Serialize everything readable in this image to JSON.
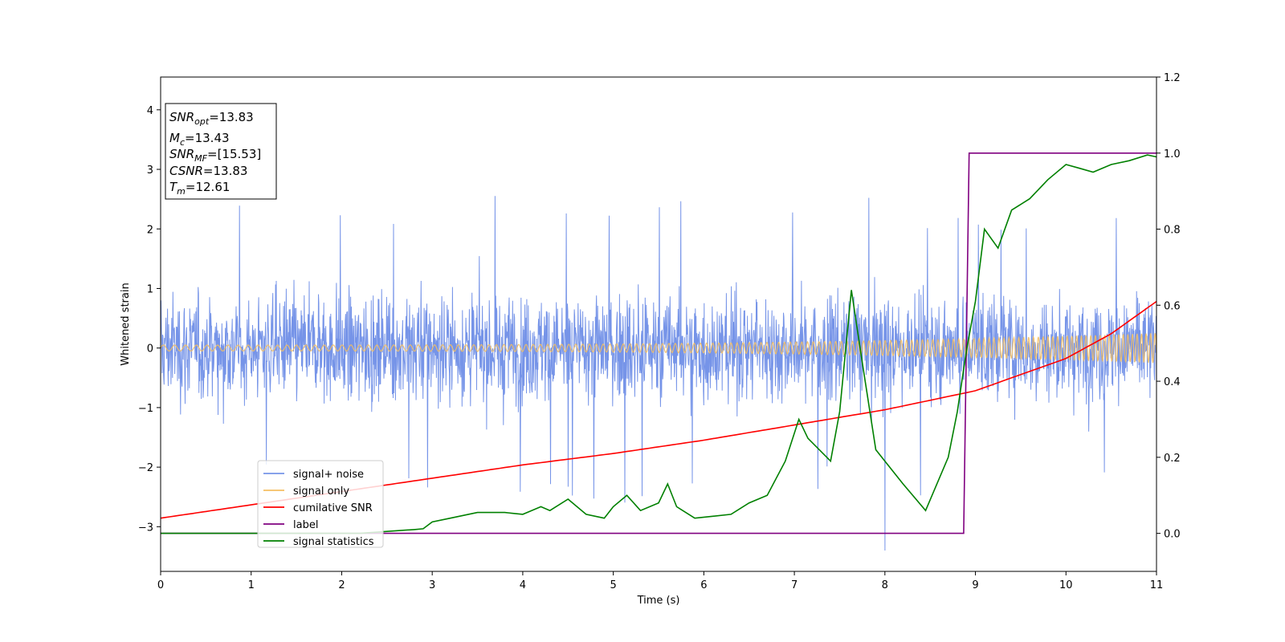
{
  "chart_data": {
    "type": "line",
    "xlabel": "Time (s)",
    "ylabel": "Whitened strain",
    "xlim": [
      0,
      11
    ],
    "ylim": [
      -3.75,
      4.55
    ],
    "y2lim": [
      -0.1,
      1.2
    ],
    "xticks": [
      0,
      1,
      2,
      3,
      4,
      5,
      6,
      7,
      8,
      9,
      10,
      11
    ],
    "yticks": [
      -3,
      -2,
      -1,
      0,
      1,
      2,
      3,
      4
    ],
    "y2ticks": [
      0.0,
      0.2,
      0.4,
      0.6,
      0.8,
      1.0,
      1.2
    ],
    "legend_position": "lower-left",
    "stats_box": {
      "snr_opt": {
        "symbol": "SNR",
        "sub": "opt",
        "value": "=13.83"
      },
      "mc": {
        "symbol": "M",
        "sub": "c",
        "value": "=13.43"
      },
      "snr_mf": {
        "symbol": "SNR",
        "sub": "MF",
        "value": "=[15.53]"
      },
      "csnr": {
        "symbol": "CSNR",
        "sub": "",
        "value": "=13.83"
      },
      "tm": {
        "symbol": "T",
        "sub": "m",
        "value": "=12.61"
      }
    },
    "series": [
      {
        "name": "signal+ noise",
        "color": "#7694e8",
        "axis": "left",
        "description_points": "noise band approx ±1.5 with spikes to ±2.8, min -3.4 near t=8.0"
      },
      {
        "name": "signal only",
        "color": "#f4bf63",
        "axis": "left",
        "amplitude_start": 0.05,
        "amplitude_end": 0.25
      },
      {
        "name": "cumilative SNR",
        "color": "#ff0000",
        "axis": "right",
        "x": [
          0,
          1,
          2,
          3,
          4,
          5,
          6,
          7,
          8,
          9,
          10,
          10.5,
          11
        ],
        "y": [
          0.04,
          0.075,
          0.11,
          0.145,
          0.18,
          0.21,
          0.245,
          0.285,
          0.325,
          0.375,
          0.46,
          0.525,
          0.61
        ]
      },
      {
        "name": "label",
        "color": "#800080",
        "axis": "right",
        "x": [
          0,
          8.87,
          8.93,
          11
        ],
        "y": [
          0,
          0,
          1,
          1
        ]
      },
      {
        "name": "signal statistics",
        "color": "#008000",
        "axis": "right",
        "x": [
          0,
          2.2,
          2.5,
          2.8,
          2.9,
          3.0,
          3.2,
          3.5,
          3.8,
          4.0,
          4.2,
          4.3,
          4.5,
          4.7,
          4.9,
          5.0,
          5.15,
          5.3,
          5.5,
          5.6,
          5.7,
          5.9,
          6.1,
          6.3,
          6.5,
          6.7,
          6.9,
          7.05,
          7.15,
          7.4,
          7.5,
          7.63,
          7.75,
          7.9,
          8.0,
          8.2,
          8.45,
          8.7,
          8.8,
          8.9,
          9.0,
          9.1,
          9.25,
          9.4,
          9.6,
          9.8,
          10.0,
          10.15,
          10.3,
          10.5,
          10.7,
          10.9,
          11
        ],
        "y": [
          0,
          0,
          0.005,
          0.01,
          0.012,
          0.03,
          0.04,
          0.055,
          0.055,
          0.05,
          0.07,
          0.06,
          0.09,
          0.05,
          0.04,
          0.07,
          0.1,
          0.06,
          0.08,
          0.13,
          0.07,
          0.04,
          0.045,
          0.05,
          0.08,
          0.1,
          0.19,
          0.3,
          0.25,
          0.19,
          0.32,
          0.64,
          0.45,
          0.22,
          0.19,
          0.13,
          0.06,
          0.2,
          0.32,
          0.48,
          0.61,
          0.8,
          0.75,
          0.85,
          0.88,
          0.93,
          0.97,
          0.96,
          0.95,
          0.97,
          0.98,
          0.995,
          0.99
        ]
      }
    ]
  }
}
